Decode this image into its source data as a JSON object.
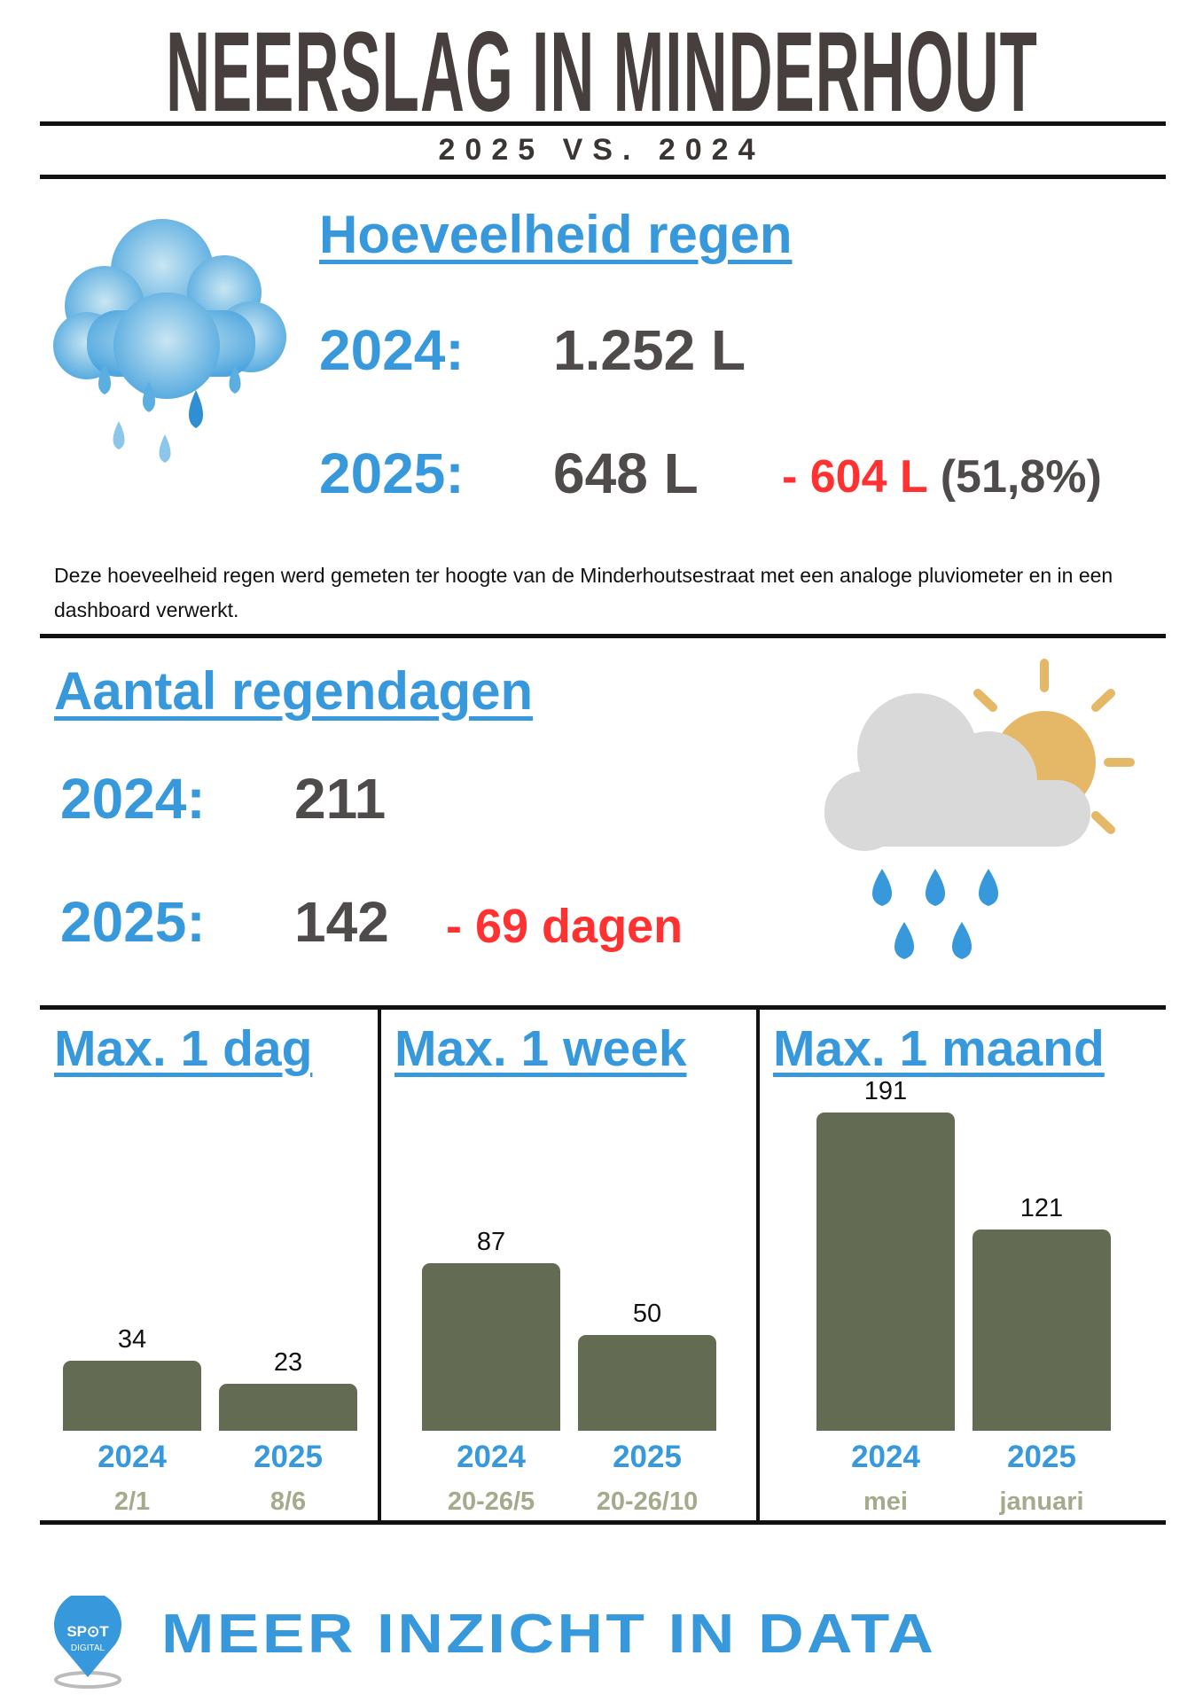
{
  "header": {
    "title": "NEERSLAG IN MINDERHOUT",
    "subtitle": "2025 VS. 2024"
  },
  "amount": {
    "heading": "Hoeveelheid regen",
    "rows": [
      {
        "year": "2024:",
        "value": "1.252 L"
      },
      {
        "year": "2025:",
        "value": "648 L",
        "diff": "- 604 L",
        "pct": "(51,8%)"
      }
    ],
    "note": "Deze hoeveelheid regen werd gemeten ter hoogte van de Minderhoutsestraat met een analoge pluviometer en in een dashboard verwerkt."
  },
  "days": {
    "heading": "Aantal regendagen",
    "rows": [
      {
        "year": "2024:",
        "value": "211"
      },
      {
        "year": "2025:",
        "value": "142",
        "diff": "- 69 dagen"
      }
    ]
  },
  "chart_data": [
    {
      "type": "bar",
      "title": "Max. 1 dag",
      "categories": [
        "2024",
        "2025"
      ],
      "sublabels": [
        "2/1",
        "8/6"
      ],
      "values": [
        34,
        23
      ]
    },
    {
      "type": "bar",
      "title": "Max. 1 week",
      "categories": [
        "2024",
        "2025"
      ],
      "sublabels": [
        "20-26/5",
        "20-26/10"
      ],
      "values": [
        87,
        50
      ]
    },
    {
      "type": "bar",
      "title": "Max. 1 maand",
      "categories": [
        "2024",
        "2025"
      ],
      "sublabels": [
        "mei",
        "januari"
      ],
      "values": [
        191,
        121
      ]
    }
  ],
  "footer": {
    "tagline": "MEER INZICHT IN DATA",
    "logo_text": "SPOT DIGITAL"
  },
  "colors": {
    "blue": "#3799dc",
    "dark": "#463f3d",
    "red": "#ff3131",
    "bar": "#636b52"
  }
}
